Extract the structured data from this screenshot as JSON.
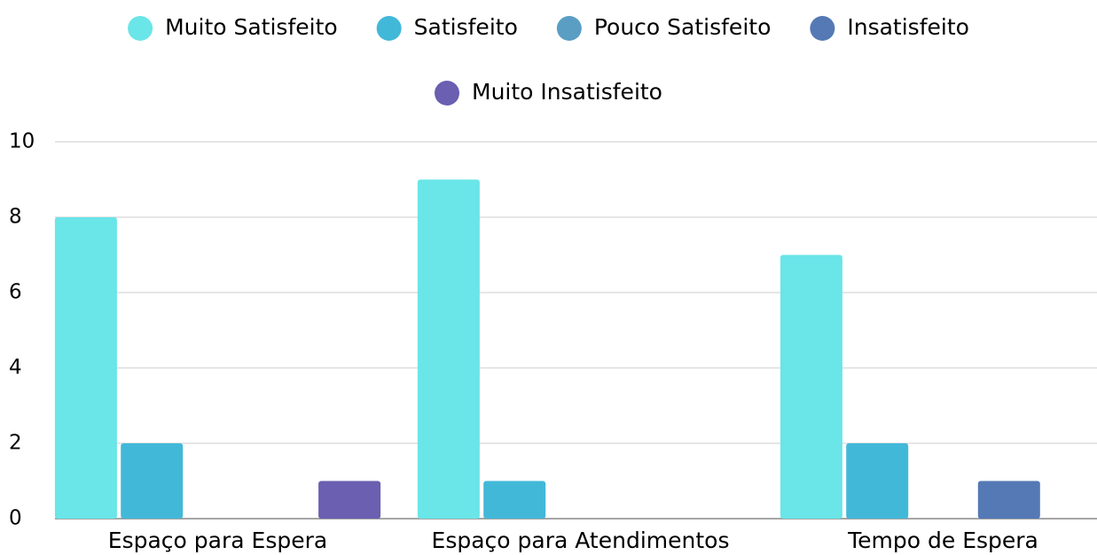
{
  "chart_data": {
    "type": "bar",
    "categories": [
      "Espaço para Espera",
      "Espaço para Atendimentos",
      "Tempo de Espera"
    ],
    "series": [
      {
        "name": "Muito Satisfeito",
        "color": "#6ae5e8",
        "values": [
          8,
          9,
          7
        ]
      },
      {
        "name": "Satisfeito",
        "color": "#42b8d8",
        "values": [
          2,
          1,
          2
        ]
      },
      {
        "name": "Pouco Satisfeito",
        "color": "#5a9ec4",
        "values": [
          0,
          0,
          0
        ]
      },
      {
        "name": "Insatisfeito",
        "color": "#5479b5",
        "values": [
          0,
          0,
          1
        ]
      },
      {
        "name": "Muito Insatisfeito",
        "color": "#6a5fb0",
        "values": [
          1,
          0,
          0
        ]
      }
    ],
    "ylim": [
      0,
      10
    ],
    "yticks": [
      0,
      2,
      4,
      6,
      8,
      10
    ],
    "grid": true,
    "legend": "top"
  }
}
